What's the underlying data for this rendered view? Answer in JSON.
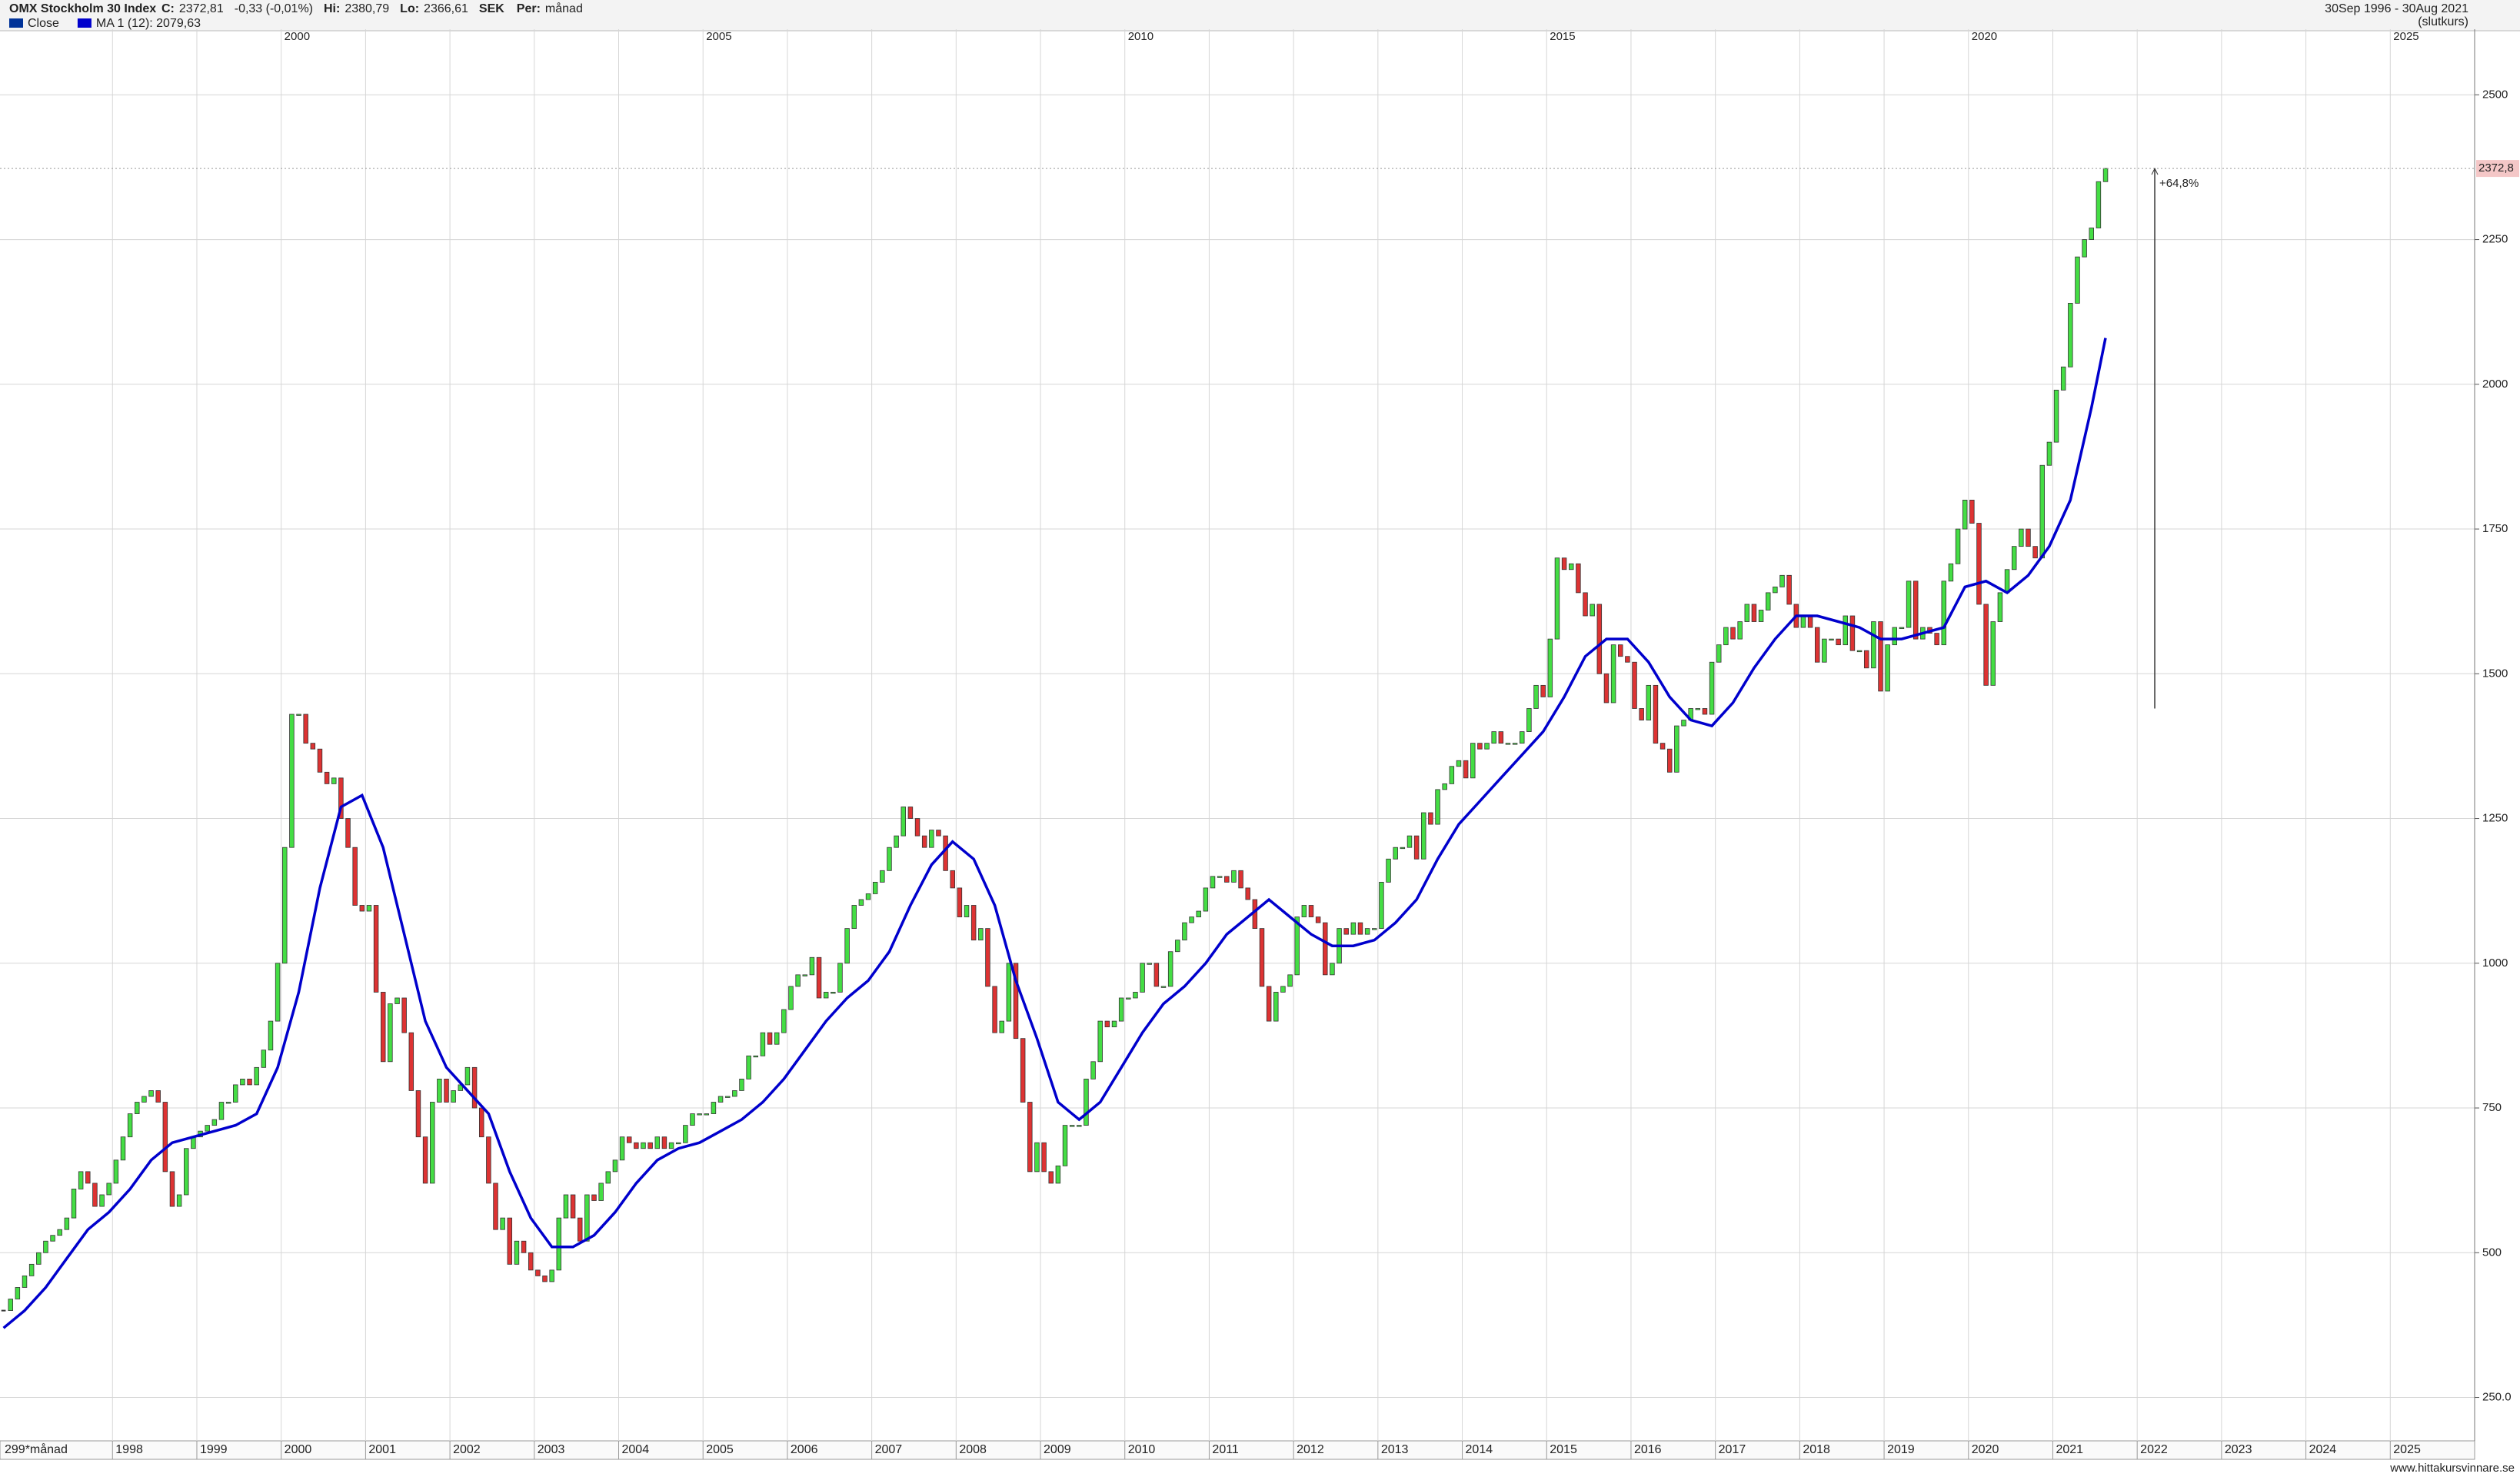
{
  "chart_data": {
    "type": "candlestick",
    "title": "OMX Stockholm 30 Index",
    "stats": [
      {
        "label": "C:",
        "value": "2372,81"
      },
      {
        "label": "",
        "value": "-0,33 (-0,01%)"
      },
      {
        "label": "Hi:",
        "value": "2380,79"
      },
      {
        "label": "Lo:",
        "value": "2366,61"
      },
      {
        "label": "SEK",
        "value": ""
      },
      {
        "label": "Per:",
        "value": "månad"
      }
    ],
    "range_text": "30Sep 1996 - 30Aug 2021",
    "range_note": "(slutkurs)",
    "period_text": "299*månad",
    "source": "www.hittakursvinnare.se",
    "last_label": "2372,8",
    "annotation": {
      "text": "+64,8%",
      "x": "2022-03",
      "from": 1440,
      "to": 2372.81
    },
    "xlim": [
      "1996-09",
      "2025-12"
    ],
    "xticks": [
      1998,
      1999,
      2000,
      2001,
      2002,
      2003,
      2004,
      2005,
      2006,
      2007,
      2008,
      2009,
      2010,
      2011,
      2012,
      2013,
      2014,
      2015,
      2016,
      2017,
      2018,
      2019,
      2020,
      2021,
      2022,
      2023,
      2024,
      2025
    ],
    "xticks_top": [
      2000,
      2005,
      2010,
      2015,
      2020,
      2025
    ],
    "ylim": [
      175,
      2608
    ],
    "yticks": [
      {
        "value": 250,
        "label": "250.0"
      },
      500,
      750,
      1000,
      1250,
      1500,
      1750,
      2000,
      2250,
      2500
    ],
    "grid": true,
    "up_color": "#44dd44",
    "down_color": "#dd3333",
    "series": [
      {
        "name": "Close",
        "color": "#003399",
        "x": [
          "1996-09",
          "1996-10",
          "1996-11",
          "1996-12",
          "1997-01",
          "1997-02",
          "1997-03",
          "1997-04",
          "1997-05",
          "1997-06",
          "1997-07",
          "1997-08",
          "1997-09",
          "1997-10",
          "1997-11",
          "1997-12",
          "1998-01",
          "1998-02",
          "1998-03",
          "1998-04",
          "1998-05",
          "1998-06",
          "1998-07",
          "1998-08",
          "1998-09",
          "1998-10",
          "1998-11",
          "1998-12",
          "1999-01",
          "1999-02",
          "1999-03",
          "1999-04",
          "1999-05",
          "1999-06",
          "1999-07",
          "1999-08",
          "1999-09",
          "1999-10",
          "1999-11",
          "1999-12",
          "2000-01",
          "2000-02",
          "2000-03",
          "2000-04",
          "2000-05",
          "2000-06",
          "2000-07",
          "2000-08",
          "2000-09",
          "2000-10",
          "2000-11",
          "2000-12",
          "2001-01",
          "2001-02",
          "2001-03",
          "2001-04",
          "2001-05",
          "2001-06",
          "2001-07",
          "2001-08",
          "2001-09",
          "2001-10",
          "2001-11",
          "2001-12",
          "2002-01",
          "2002-02",
          "2002-03",
          "2002-04",
          "2002-05",
          "2002-06",
          "2002-07",
          "2002-08",
          "2002-09",
          "2002-10",
          "2002-11",
          "2002-12",
          "2003-01",
          "2003-02",
          "2003-03",
          "2003-04",
          "2003-05",
          "2003-06",
          "2003-07",
          "2003-08",
          "2003-09",
          "2003-10",
          "2003-11",
          "2003-12",
          "2004-01",
          "2004-02",
          "2004-03",
          "2004-04",
          "2004-05",
          "2004-06",
          "2004-07",
          "2004-08",
          "2004-09",
          "2004-10",
          "2004-11",
          "2004-12",
          "2005-01",
          "2005-02",
          "2005-03",
          "2005-04",
          "2005-05",
          "2005-06",
          "2005-07",
          "2005-08",
          "2005-09",
          "2005-10",
          "2005-11",
          "2005-12",
          "2006-01",
          "2006-02",
          "2006-03",
          "2006-04",
          "2006-05",
          "2006-06",
          "2006-07",
          "2006-08",
          "2006-09",
          "2006-10",
          "2006-11",
          "2006-12",
          "2007-01",
          "2007-02",
          "2007-03",
          "2007-04",
          "2007-05",
          "2007-06",
          "2007-07",
          "2007-08",
          "2007-09",
          "2007-10",
          "2007-11",
          "2007-12",
          "2008-01",
          "2008-02",
          "2008-03",
          "2008-04",
          "2008-05",
          "2008-06",
          "2008-07",
          "2008-08",
          "2008-09",
          "2008-10",
          "2008-11",
          "2008-12",
          "2009-01",
          "2009-02",
          "2009-03",
          "2009-04",
          "2009-05",
          "2009-06",
          "2009-07",
          "2009-08",
          "2009-09",
          "2009-10",
          "2009-11",
          "2009-12",
          "2010-01",
          "2010-02",
          "2010-03",
          "2010-04",
          "2010-05",
          "2010-06",
          "2010-07",
          "2010-08",
          "2010-09",
          "2010-10",
          "2010-11",
          "2010-12",
          "2011-01",
          "2011-02",
          "2011-03",
          "2011-04",
          "2011-05",
          "2011-06",
          "2011-07",
          "2011-08",
          "2011-09",
          "2011-10",
          "2011-11",
          "2011-12",
          "2012-01",
          "2012-02",
          "2012-03",
          "2012-04",
          "2012-05",
          "2012-06",
          "2012-07",
          "2012-08",
          "2012-09",
          "2012-10",
          "2012-11",
          "2012-12",
          "2013-01",
          "2013-02",
          "2013-03",
          "2013-04",
          "2013-05",
          "2013-06",
          "2013-07",
          "2013-08",
          "2013-09",
          "2013-10",
          "2013-11",
          "2013-12",
          "2014-01",
          "2014-02",
          "2014-03",
          "2014-04",
          "2014-05",
          "2014-06",
          "2014-07",
          "2014-08",
          "2014-09",
          "2014-10",
          "2014-11",
          "2014-12",
          "2015-01",
          "2015-02",
          "2015-03",
          "2015-04",
          "2015-05",
          "2015-06",
          "2015-07",
          "2015-08",
          "2015-09",
          "2015-10",
          "2015-11",
          "2015-12",
          "2016-01",
          "2016-02",
          "2016-03",
          "2016-04",
          "2016-05",
          "2016-06",
          "2016-07",
          "2016-08",
          "2016-09",
          "2016-10",
          "2016-11",
          "2016-12",
          "2017-01",
          "2017-02",
          "2017-03",
          "2017-04",
          "2017-05",
          "2017-06",
          "2017-07",
          "2017-08",
          "2017-09",
          "2017-10",
          "2017-11",
          "2017-12",
          "2018-01",
          "2018-02",
          "2018-03",
          "2018-04",
          "2018-05",
          "2018-06",
          "2018-07",
          "2018-08",
          "2018-09",
          "2018-10",
          "2018-11",
          "2018-12",
          "2019-01",
          "2019-02",
          "2019-03",
          "2019-04",
          "2019-05",
          "2019-06",
          "2019-07",
          "2019-08",
          "2019-09",
          "2019-10",
          "2019-11",
          "2019-12",
          "2020-01",
          "2020-02",
          "2020-03",
          "2020-04",
          "2020-05",
          "2020-06",
          "2020-07",
          "2020-08",
          "2020-09",
          "2020-10",
          "2020-11",
          "2020-12",
          "2021-01",
          "2021-02",
          "2021-03",
          "2021-04",
          "2021-05",
          "2021-06",
          "2021-07",
          "2021-08"
        ],
        "values": [
          400,
          420,
          440,
          460,
          480,
          500,
          520,
          530,
          540,
          560,
          610,
          640,
          620,
          580,
          600,
          620,
          660,
          700,
          740,
          760,
          770,
          780,
          760,
          640,
          580,
          600,
          680,
          700,
          710,
          720,
          730,
          760,
          760,
          790,
          800,
          790,
          820,
          850,
          900,
          1000,
          1200,
          1430,
          1430,
          1380,
          1370,
          1330,
          1310,
          1320,
          1250,
          1200,
          1100,
          1090,
          1100,
          950,
          830,
          930,
          940,
          880,
          780,
          700,
          620,
          760,
          800,
          760,
          780,
          790,
          820,
          750,
          700,
          620,
          540,
          560,
          480,
          520,
          500,
          470,
          460,
          450,
          470,
          560,
          600,
          560,
          520,
          600,
          590,
          620,
          640,
          660,
          700,
          690,
          680,
          690,
          680,
          700,
          680,
          690,
          690,
          720,
          740,
          740,
          740,
          760,
          770,
          770,
          780,
          800,
          840,
          840,
          880,
          860,
          880,
          920,
          960,
          980,
          980,
          1010,
          940,
          950,
          950,
          1000,
          1060,
          1100,
          1110,
          1120,
          1140,
          1160,
          1200,
          1220,
          1270,
          1250,
          1220,
          1200,
          1230,
          1220,
          1160,
          1130,
          1080,
          1100,
          1040,
          1060,
          960,
          880,
          900,
          1000,
          870,
          760,
          640,
          690,
          640,
          620,
          650,
          720,
          720,
          720,
          800,
          830,
          900,
          890,
          900,
          940,
          940,
          950,
          1000,
          1000,
          960,
          960,
          1020,
          1040,
          1070,
          1080,
          1090,
          1130,
          1150,
          1150,
          1140,
          1160,
          1130,
          1110,
          1060,
          960,
          900,
          950,
          960,
          980,
          1080,
          1100,
          1080,
          1070,
          980,
          1000,
          1060,
          1050,
          1070,
          1050,
          1060,
          1060,
          1140,
          1180,
          1200,
          1200,
          1220,
          1180,
          1260,
          1240,
          1300,
          1310,
          1340,
          1350,
          1320,
          1380,
          1370,
          1380,
          1400,
          1380,
          1380,
          1380,
          1400,
          1440,
          1480,
          1460,
          1560,
          1700,
          1680,
          1690,
          1640,
          1600,
          1620,
          1500,
          1450,
          1550,
          1530,
          1520,
          1440,
          1420,
          1480,
          1380,
          1370,
          1330,
          1410,
          1420,
          1440,
          1440,
          1430,
          1520,
          1550,
          1580,
          1560,
          1590,
          1620,
          1590,
          1610,
          1640,
          1650,
          1670,
          1620,
          1580,
          1600,
          1580,
          1520,
          1560,
          1560,
          1550,
          1600,
          1540,
          1540,
          1510,
          1590,
          1470,
          1550,
          1580,
          1580,
          1660,
          1560,
          1580,
          1570,
          1550,
          1660,
          1690,
          1750,
          1800,
          1760,
          1620,
          1480,
          1590,
          1640,
          1680,
          1720,
          1750,
          1720,
          1700,
          1860,
          1900,
          1990,
          2030,
          2140,
          2220,
          2250,
          2270,
          2350,
          2372.81
        ]
      },
      {
        "name": "MA 1 (12): 2079,63",
        "color": "#0000cc",
        "axis": "line",
        "x": [
          "1996-09",
          "1996-12",
          "1997-03",
          "1997-06",
          "1997-09",
          "1997-12",
          "1998-03",
          "1998-06",
          "1998-09",
          "1998-12",
          "1999-03",
          "1999-06",
          "1999-09",
          "1999-12",
          "2000-03",
          "2000-06",
          "2000-09",
          "2000-12",
          "2001-03",
          "2001-06",
          "2001-09",
          "2001-12",
          "2002-03",
          "2002-06",
          "2002-09",
          "2002-12",
          "2003-03",
          "2003-06",
          "2003-09",
          "2003-12",
          "2004-03",
          "2004-06",
          "2004-09",
          "2004-12",
          "2005-03",
          "2005-06",
          "2005-09",
          "2005-12",
          "2006-03",
          "2006-06",
          "2006-09",
          "2006-12",
          "2007-03",
          "2007-06",
          "2007-09",
          "2007-12",
          "2008-03",
          "2008-06",
          "2008-09",
          "2008-12",
          "2009-03",
          "2009-06",
          "2009-09",
          "2009-12",
          "2010-03",
          "2010-06",
          "2010-09",
          "2010-12",
          "2011-03",
          "2011-06",
          "2011-09",
          "2011-12",
          "2012-03",
          "2012-06",
          "2012-09",
          "2012-12",
          "2013-03",
          "2013-06",
          "2013-09",
          "2013-12",
          "2014-03",
          "2014-06",
          "2014-09",
          "2014-12",
          "2015-03",
          "2015-06",
          "2015-09",
          "2015-12",
          "2016-03",
          "2016-06",
          "2016-09",
          "2016-12",
          "2017-03",
          "2017-06",
          "2017-09",
          "2017-12",
          "2018-03",
          "2018-06",
          "2018-09",
          "2018-12",
          "2019-03",
          "2019-06",
          "2019-09",
          "2019-12",
          "2020-03",
          "2020-06",
          "2020-09",
          "2020-12",
          "2021-03",
          "2021-06",
          "2021-08"
        ],
        "values": [
          370,
          400,
          440,
          490,
          540,
          570,
          610,
          660,
          690,
          700,
          710,
          720,
          740,
          820,
          950,
          1130,
          1270,
          1290,
          1200,
          1050,
          900,
          820,
          780,
          740,
          640,
          560,
          510,
          510,
          530,
          570,
          620,
          660,
          680,
          690,
          710,
          730,
          760,
          800,
          850,
          900,
          940,
          970,
          1020,
          1100,
          1170,
          1210,
          1180,
          1100,
          970,
          870,
          760,
          730,
          760,
          820,
          880,
          930,
          960,
          1000,
          1050,
          1080,
          1110,
          1080,
          1050,
          1030,
          1030,
          1040,
          1070,
          1110,
          1180,
          1240,
          1280,
          1320,
          1360,
          1400,
          1460,
          1530,
          1560,
          1560,
          1520,
          1460,
          1420,
          1410,
          1450,
          1510,
          1560,
          1600,
          1600,
          1590,
          1580,
          1560,
          1560,
          1570,
          1580,
          1650,
          1660,
          1640,
          1670,
          1720,
          1800,
          1960,
          2080
        ]
      }
    ]
  }
}
